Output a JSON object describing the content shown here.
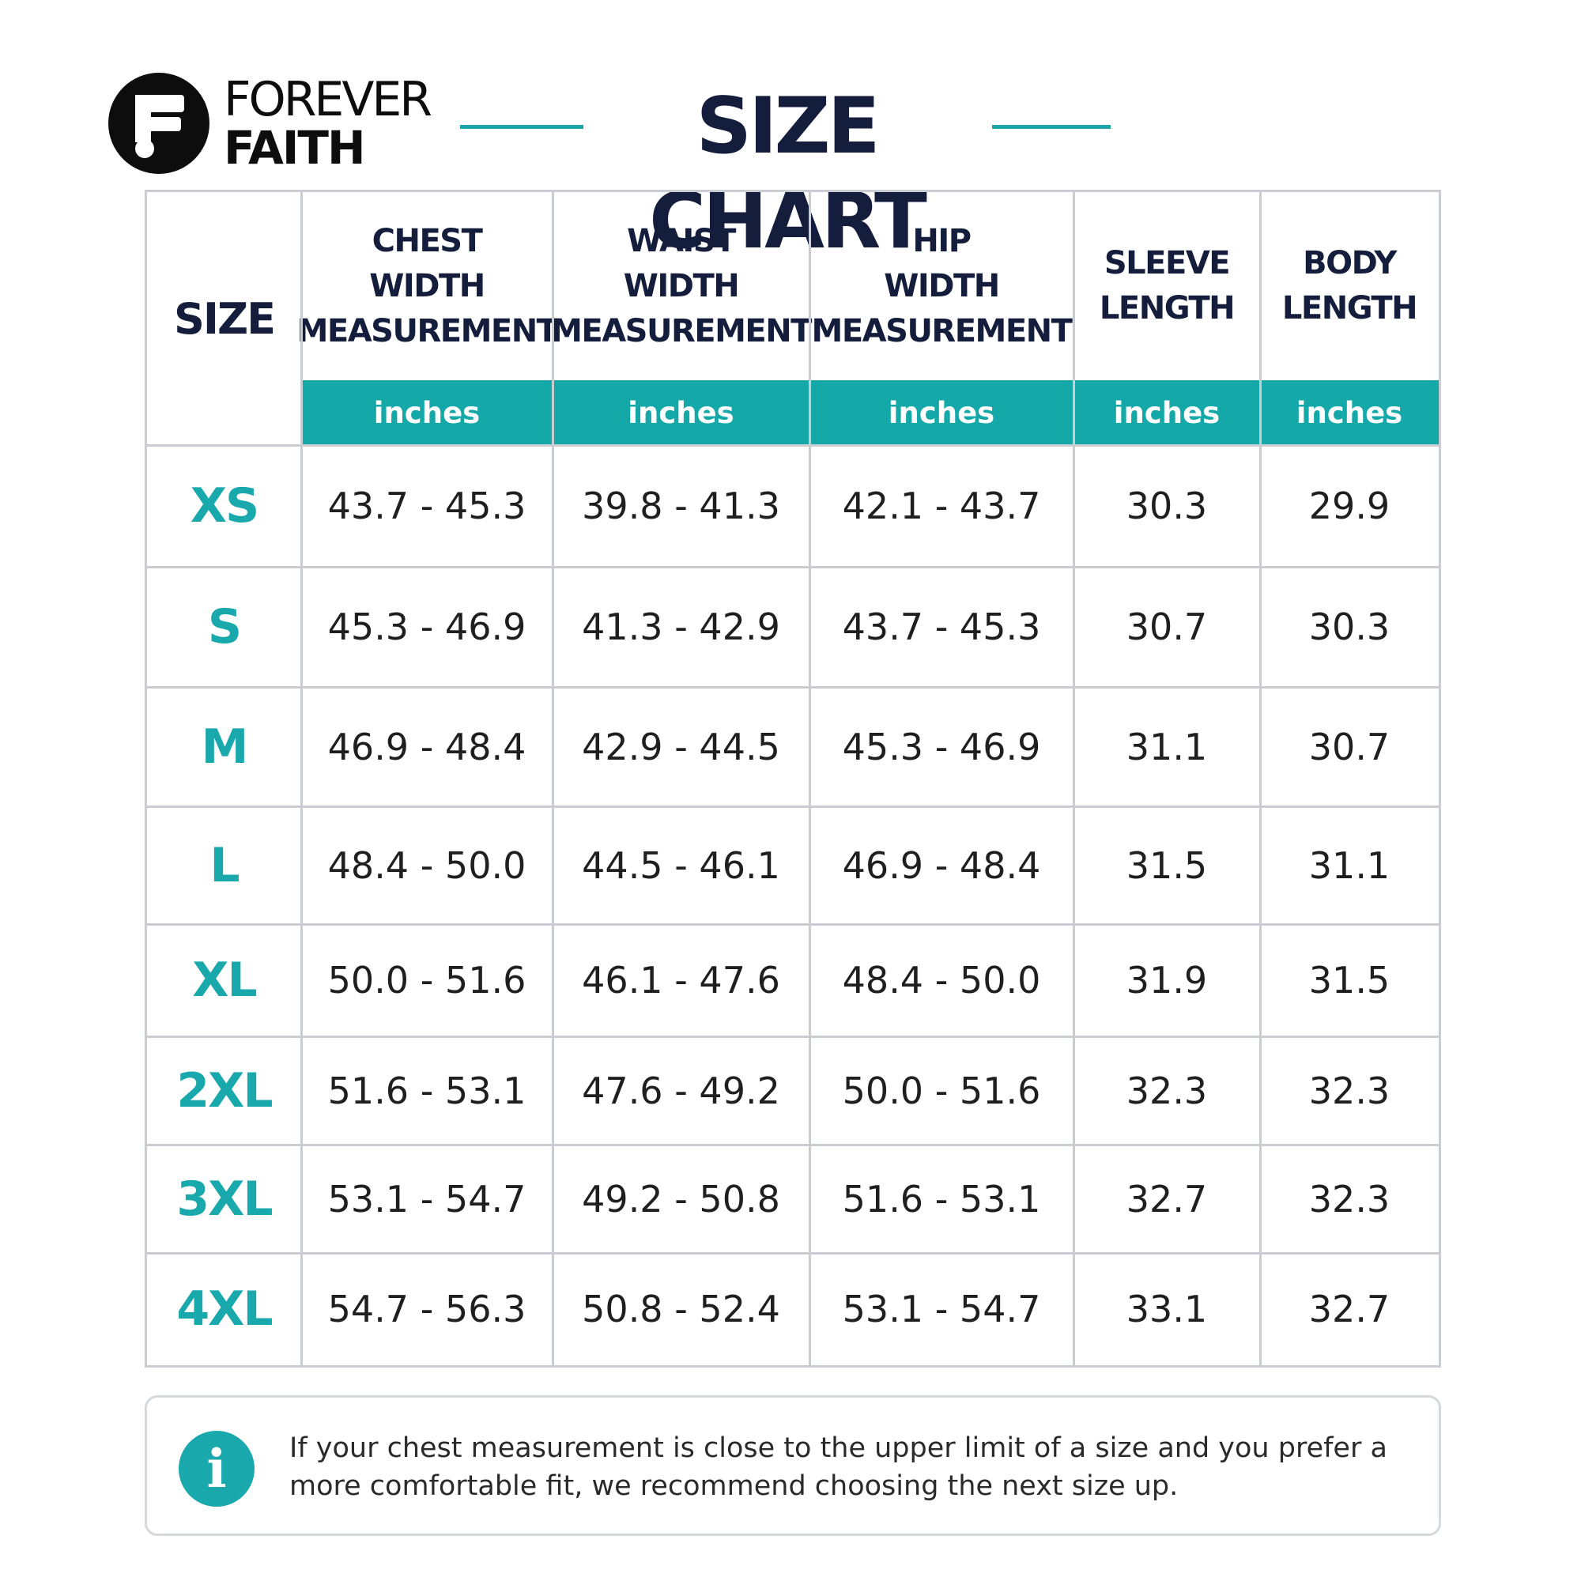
{
  "brand": {
    "line1": "FOREVER",
    "line2": "FAITH",
    "logo_icon": "forever-faith-f-icon"
  },
  "title": "SIZE CHART",
  "colors": {
    "accent": "#19a9ad",
    "unit_bar": "#14a8a8",
    "heading": "#141e3c",
    "value_text": "#1f1f1f",
    "grid": "#c9cdd2"
  },
  "table": {
    "size_header": "SIZE",
    "columns": [
      {
        "header": "CHEST\nWIDTH\nMEASUREMENT",
        "unit": "inches"
      },
      {
        "header": "WAIST\nWIDTH\nMEASUREMENT",
        "unit": "inches"
      },
      {
        "header": "HIP\nWIDTH\nMEASUREMENT",
        "unit": "inches"
      },
      {
        "header": "SLEEVE\nLENGTH",
        "unit": "inches"
      },
      {
        "header": "BODY\nLENGTH",
        "unit": "inches"
      }
    ],
    "rows": [
      {
        "size": "XS",
        "values": [
          "43.7 - 45.3",
          "39.8 - 41.3",
          "42.1 - 43.7",
          "30.3",
          "29.9"
        ]
      },
      {
        "size": "S",
        "values": [
          "45.3 - 46.9",
          "41.3 - 42.9",
          "43.7 - 45.3",
          "30.7",
          "30.3"
        ]
      },
      {
        "size": "M",
        "values": [
          "46.9 - 48.4",
          "42.9 - 44.5",
          "45.3 - 46.9",
          "31.1",
          "30.7"
        ]
      },
      {
        "size": "L",
        "values": [
          "48.4 - 50.0",
          "44.5 - 46.1",
          "46.9 - 48.4",
          "31.5",
          "31.1"
        ]
      },
      {
        "size": "XL",
        "values": [
          "50.0 - 51.6",
          "46.1 - 47.6",
          "48.4 - 50.0",
          "31.9",
          "31.5"
        ]
      },
      {
        "size": "2XL",
        "values": [
          "51.6 - 53.1",
          "47.6 - 49.2",
          "50.0 - 51.6",
          "32.3",
          "32.3"
        ]
      },
      {
        "size": "3XL",
        "values": [
          "53.1 - 54.7",
          "49.2 - 50.8",
          "51.6 - 53.1",
          "32.7",
          "32.3"
        ]
      },
      {
        "size": "4XL",
        "values": [
          "54.7 - 56.3",
          "50.8 - 52.4",
          "53.1 - 54.7",
          "33.1",
          "32.7"
        ]
      }
    ]
  },
  "note": {
    "icon": "info-icon",
    "icon_glyph": "i",
    "text": "If your chest measurement is close to the upper limit of a size and you prefer a more comfortable fit, we recommend choosing the next size up."
  }
}
